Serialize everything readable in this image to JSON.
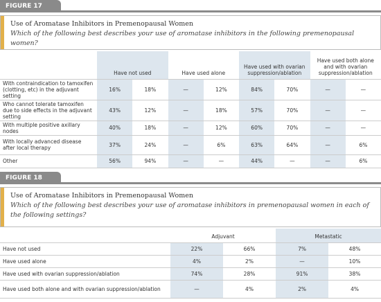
{
  "figure17": {
    "label": "FIGURE 17",
    "title": "Use of Aromatase Inhibitors in Premenopausal Women",
    "question": "Which of the following best describes your use of aromatase inhibitors in the following premenopausal women?",
    "columns": [
      "Have not used",
      "Have used alone",
      "Have used with ovarian suppression/ablation",
      "Have used both alone and with ovarian suppression/ablation"
    ],
    "rows": [
      {
        "label": "With contraindication to tamoxifen (clotting, etc) in the adjuvant setting",
        "values": [
          "16%",
          "18%",
          "—",
          "12%",
          "84%",
          "70%",
          "—",
          "—"
        ]
      },
      {
        "label": "Who cannot tolerate tamoxifen due to side effects in the adjuvant setting",
        "values": [
          "43%",
          "12%",
          "—",
          "18%",
          "57%",
          "70%",
          "—",
          "—"
        ]
      },
      {
        "label": "With multiple positive axillary nodes",
        "values": [
          "40%",
          "18%",
          "—",
          "12%",
          "60%",
          "70%",
          "—",
          "—"
        ]
      },
      {
        "label": "With locally advanced disease after local therapy",
        "values": [
          "37%",
          "24%",
          "—",
          "6%",
          "63%",
          "64%",
          "—",
          "6%"
        ]
      },
      {
        "label": "Other",
        "values": [
          "56%",
          "94%",
          "—",
          "—",
          "44%",
          "—",
          "—",
          "6%"
        ]
      }
    ]
  },
  "figure18": {
    "label": "FIGURE 18",
    "title": "Use of Aromatase Inhibitors in Premenopausal Women",
    "question": "Which of the following best describes your use of aromatase inhibitors in premenopausal women in each of the following settings?",
    "columns": [
      "Adjuvant",
      "Metastatic"
    ],
    "rows": [
      {
        "label": "Have not used",
        "values": [
          "22%",
          "66%",
          "7%",
          "48%"
        ]
      },
      {
        "label": "Have used alone",
        "values": [
          "4%",
          "2%",
          "—",
          "10%"
        ]
      },
      {
        "label": "Have used with ovarian suppression/ablation",
        "values": [
          "74%",
          "28%",
          "91%",
          "38%"
        ]
      },
      {
        "label": "Have used both alone and with ovarian suppression/ablation",
        "values": [
          "—",
          "4%",
          "2%",
          "4%"
        ]
      }
    ]
  }
}
